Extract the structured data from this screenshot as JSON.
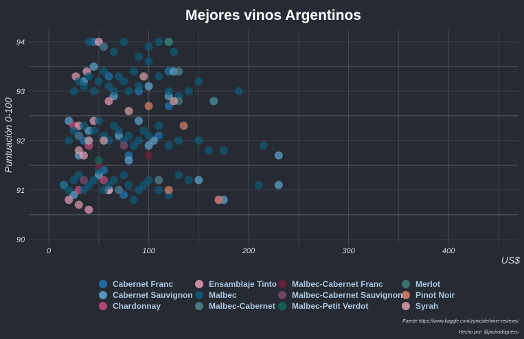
{
  "chart_data": {
    "type": "scatter",
    "title": "Mejores vinos Argentinos",
    "xlabel": "US$",
    "ylabel": "Puntuación 0-100",
    "xlim": [
      -20,
      470
    ],
    "ylim": [
      89.9,
      94.25
    ],
    "x_ticks": [
      0,
      100,
      200,
      300,
      400
    ],
    "y_ticks": [
      90,
      91,
      92,
      93,
      94
    ],
    "grid": true,
    "legend_position": "bottom",
    "series": [
      {
        "name": "Cabernet Franc",
        "color": "#1f78b4",
        "points": [
          [
            55,
            91.4
          ],
          [
            80,
            91.7
          ],
          [
            110,
            92.1
          ],
          [
            120,
            92.7
          ],
          [
            60,
            93.3
          ],
          [
            90,
            93.0
          ],
          [
            35,
            92.0
          ],
          [
            75,
            90.9
          ],
          [
            45,
            94.0
          ],
          [
            120,
            93.4
          ]
        ]
      },
      {
        "name": "Cabernet Sauvignon",
        "color": "#5fa8d3",
        "points": [
          [
            230,
            91.7
          ],
          [
            230,
            91.1
          ],
          [
            175,
            90.8
          ],
          [
            150,
            91.2
          ],
          [
            100,
            93.1
          ],
          [
            120,
            92.9
          ],
          [
            40,
            92.2
          ],
          [
            30,
            91.7
          ],
          [
            60,
            91.0
          ],
          [
            80,
            91.6
          ],
          [
            45,
            93.5
          ],
          [
            50,
            91.3
          ],
          [
            20,
            92.4
          ],
          [
            100,
            91.9
          ],
          [
            125,
            93.4
          ],
          [
            105,
            92.0
          ],
          [
            35,
            93.2
          ],
          [
            90,
            92.4
          ],
          [
            65,
            92.9
          ],
          [
            15,
            91.1
          ],
          [
            25,
            90.9
          ],
          [
            70,
            92.1
          ]
        ]
      },
      {
        "name": "Chardonnay",
        "color": "#c94f7c",
        "points": [
          [
            25,
            92.3
          ],
          [
            40,
            91.9
          ],
          [
            55,
            91.2
          ],
          [
            30,
            91.0
          ]
        ]
      },
      {
        "name": "Ensamblaje Tinto",
        "color": "#e8a0b8",
        "points": [
          [
            27,
            93.3
          ],
          [
            38,
            93.4
          ],
          [
            55,
            93.9
          ],
          [
            45,
            92.4
          ],
          [
            30,
            92.3
          ],
          [
            35,
            91.7
          ],
          [
            60,
            92.8
          ],
          [
            60,
            91.0
          ],
          [
            20,
            90.8
          ],
          [
            40,
            90.6
          ],
          [
            70,
            91.0
          ],
          [
            30,
            92.1
          ],
          [
            50,
            94.0
          ]
        ]
      },
      {
        "name": "Malbec",
        "color": "#0e5c7a",
        "points": [
          [
            15,
            91.1
          ],
          [
            20,
            91.0
          ],
          [
            25,
            91.2
          ],
          [
            30,
            91.3
          ],
          [
            35,
            91.0
          ],
          [
            40,
            91.1
          ],
          [
            45,
            91.2
          ],
          [
            50,
            91.4
          ],
          [
            55,
            91.0
          ],
          [
            60,
            91.1
          ],
          [
            65,
            91.2
          ],
          [
            70,
            91.0
          ],
          [
            75,
            91.3
          ],
          [
            80,
            91.1
          ],
          [
            85,
            90.8
          ],
          [
            90,
            91.0
          ],
          [
            95,
            91.1
          ],
          [
            100,
            91.2
          ],
          [
            110,
            91.0
          ],
          [
            120,
            90.9
          ],
          [
            20,
            92.0
          ],
          [
            25,
            92.2
          ],
          [
            30,
            92.1
          ],
          [
            35,
            92.3
          ],
          [
            40,
            92.0
          ],
          [
            45,
            92.2
          ],
          [
            50,
            92.4
          ],
          [
            55,
            92.1
          ],
          [
            60,
            92.0
          ],
          [
            65,
            92.3
          ],
          [
            70,
            92.2
          ],
          [
            75,
            92.0
          ],
          [
            80,
            92.1
          ],
          [
            85,
            91.9
          ],
          [
            90,
            92.0
          ],
          [
            95,
            92.2
          ],
          [
            100,
            92.1
          ],
          [
            110,
            92.3
          ],
          [
            120,
            91.9
          ],
          [
            130,
            92.0
          ],
          [
            150,
            92.0
          ],
          [
            160,
            91.8
          ],
          [
            175,
            91.8
          ],
          [
            215,
            91.9
          ],
          [
            210,
            91.1
          ],
          [
            130,
            91.3
          ],
          [
            140,
            91.2
          ],
          [
            25,
            93.0
          ],
          [
            30,
            93.2
          ],
          [
            35,
            93.1
          ],
          [
            40,
            93.3
          ],
          [
            45,
            93.0
          ],
          [
            50,
            93.2
          ],
          [
            55,
            93.4
          ],
          [
            60,
            93.1
          ],
          [
            65,
            93.0
          ],
          [
            70,
            93.3
          ],
          [
            75,
            93.2
          ],
          [
            80,
            93.0
          ],
          [
            85,
            93.4
          ],
          [
            90,
            93.1
          ],
          [
            100,
            93.6
          ],
          [
            110,
            93.3
          ],
          [
            120,
            93.0
          ],
          [
            130,
            92.9
          ],
          [
            140,
            93.0
          ],
          [
            150,
            93.2
          ],
          [
            165,
            92.8
          ],
          [
            190,
            93.0
          ],
          [
            40,
            94.0
          ],
          [
            55,
            93.9
          ],
          [
            65,
            93.8
          ],
          [
            75,
            94.0
          ],
          [
            90,
            93.7
          ],
          [
            100,
            93.9
          ],
          [
            110,
            94.0
          ],
          [
            125,
            93.8
          ]
        ]
      },
      {
        "name": "Malbec-Cabernet",
        "color": "#4f8a8f",
        "points": [
          [
            130,
            93.4
          ],
          [
            165,
            92.8
          ],
          [
            110,
            91.2
          ]
        ]
      },
      {
        "name": "Malbec-Cabernet Franc",
        "color": "#6e1f3c",
        "points": [
          [
            100,
            91.7
          ],
          [
            50,
            91.5
          ]
        ]
      },
      {
        "name": "Malbec-Cabernet Sauvignon",
        "color": "#7e4a6c",
        "points": [
          [
            170,
            90.8
          ],
          [
            75,
            91.9
          ],
          [
            35,
            91.2
          ]
        ]
      },
      {
        "name": "Malbec-Petit Verdot",
        "color": "#12695a",
        "points": [
          [
            120,
            94.0
          ],
          [
            50,
            91.6
          ]
        ]
      },
      {
        "name": "Merlot",
        "color": "#3f7f7a",
        "points": [
          [
            120,
            94.0
          ],
          [
            130,
            92.8
          ]
        ]
      },
      {
        "name": "Pinot Noir",
        "color": "#d9826b",
        "points": [
          [
            100,
            92.7
          ],
          [
            135,
            92.3
          ],
          [
            170,
            90.8
          ],
          [
            120,
            91.0
          ]
        ]
      },
      {
        "name": "Syrah",
        "color": "#d9a0a8",
        "points": [
          [
            95,
            93.3
          ],
          [
            30,
            91.8
          ],
          [
            40,
            92.0
          ],
          [
            125,
            92.8
          ],
          [
            80,
            92.6
          ],
          [
            55,
            92.0
          ],
          [
            30,
            90.7
          ]
        ]
      }
    ],
    "source": "Fuente https://www.kaggle.com/zynicide/wine-reviews/",
    "author": "Hecho por: @javirodriguezu"
  }
}
